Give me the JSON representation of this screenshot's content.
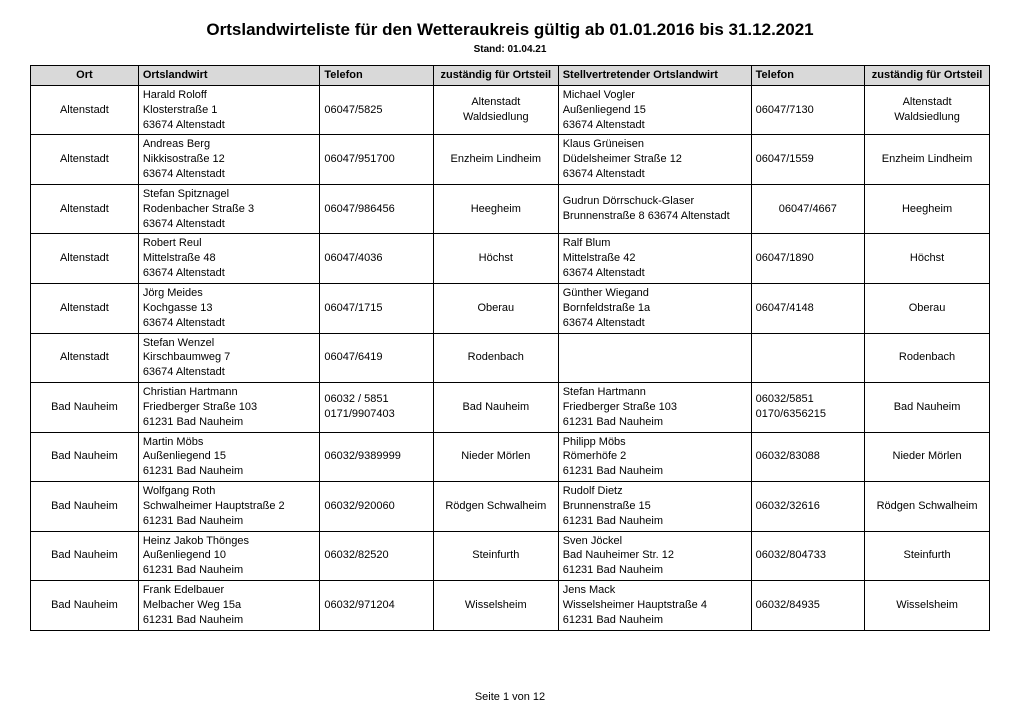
{
  "title": "Ortslandwirteliste für den Wetteraukreis gültig ab 01.01.2016 bis 31.12.2021",
  "subtitle": "Stand: 01.04.21",
  "footer": "Seite 1 von 12",
  "columns": {
    "ort": "Ort",
    "ortslandwirt": "Ortslandwirt",
    "telefon": "Telefon",
    "zustaendig": "zuständig für Ortsteil",
    "stellvertreter": "Stellvertretender Ortslandwirt",
    "telefon2": "Telefon",
    "zustaendig2": "zuständig für Ortsteil"
  },
  "rows": [
    {
      "ort": "Altenstadt",
      "olw": "Harald Roloff\nKlosterstraße 1\n63674 Altenstadt",
      "tel": "06047/5825",
      "zust": "Altenstadt Waldsiedlung",
      "stv": "Michael Vogler\nAußenliegend 15\n63674 Altenstadt",
      "tel2": "06047/7130",
      "zust2": "Altenstadt Waldsiedlung"
    },
    {
      "ort": "Altenstadt",
      "olw": "Andreas Berg\nNikkisostraße 12\n63674 Altenstadt",
      "tel": "06047/951700",
      "zust": "Enzheim Lindheim",
      "stv": "Klaus Grüneisen\nDüdelsheimer Straße 12\n63674 Altenstadt",
      "tel2": "06047/1559",
      "zust2": "Enzheim Lindheim"
    },
    {
      "ort": "Altenstadt",
      "olw": "Stefan Spitznagel\nRodenbacher Straße 3\n63674 Altenstadt",
      "tel": "06047/986456",
      "zust": "Heegheim",
      "stv": "Gudrun Dörrschuck-Glaser\nBrunnenstraße 8 63674 Altenstadt",
      "tel2": "06047/4667",
      "zust2": "Heegheim",
      "tel2_center": true
    },
    {
      "ort": "Altenstadt",
      "olw": "Robert Reul\nMittelstraße 48\n63674 Altenstadt",
      "tel": "06047/4036",
      "zust": "Höchst",
      "stv": "Ralf Blum\nMittelstraße 42\n63674 Altenstadt",
      "tel2": "06047/1890",
      "zust2": "Höchst"
    },
    {
      "ort": "Altenstadt",
      "olw": "Jörg Meides\nKochgasse 13\n63674 Altenstadt",
      "tel": "06047/1715",
      "zust": "Oberau",
      "stv": "Günther Wiegand\nBornfeldstraße 1a\n63674 Altenstadt",
      "tel2": "06047/4148",
      "zust2": "Oberau"
    },
    {
      "ort": "Altenstadt",
      "olw": "Stefan Wenzel\nKirschbaumweg 7\n63674 Altenstadt",
      "tel": "06047/6419",
      "zust": "Rodenbach",
      "stv": "",
      "tel2": "",
      "zust2": "Rodenbach"
    },
    {
      "ort": "Bad Nauheim",
      "olw": "Christian Hartmann\nFriedberger Straße 103\n61231 Bad Nauheim",
      "tel": "06032 / 5851\n0171/9907403",
      "zust": "Bad Nauheim",
      "stv": "Stefan Hartmann\nFriedberger Straße 103\n61231 Bad Nauheim",
      "tel2": "06032/5851\n0170/6356215",
      "zust2": "Bad Nauheim"
    },
    {
      "ort": "Bad Nauheim",
      "olw": "Martin Möbs\nAußenliegend 15\n61231 Bad Nauheim",
      "tel": "06032/9389999",
      "zust": "Nieder Mörlen",
      "stv": "Philipp Möbs\nRömerhöfe 2\n61231 Bad Nauheim",
      "tel2": "06032/83088",
      "zust2": "Nieder Mörlen"
    },
    {
      "ort": "Bad Nauheim",
      "olw": "Wolfgang Roth\nSchwalheimer Hauptstraße 2\n61231 Bad Nauheim",
      "tel": "06032/920060",
      "zust": "Rödgen Schwalheim",
      "stv": "Rudolf Dietz\nBrunnenstraße 15\n61231 Bad Nauheim",
      "tel2": "06032/32616",
      "zust2": "Rödgen Schwalheim"
    },
    {
      "ort": "Bad Nauheim",
      "olw": "Heinz Jakob Thönges\nAußenliegend 10\n61231 Bad Nauheim",
      "tel": "06032/82520",
      "zust": "Steinfurth",
      "stv": "Sven Jöckel\nBad Nauheimer Str. 12\n61231 Bad Nauheim",
      "tel2": "06032/804733",
      "zust2": "Steinfurth"
    },
    {
      "ort": "Bad Nauheim",
      "olw": "Frank Edelbauer\nMelbacher Weg 15a\n61231 Bad Nauheim",
      "tel": "06032/971204",
      "zust": "Wisselsheim",
      "stv": "Jens Mack\nWisselsheimer Hauptstraße 4\n61231 Bad Nauheim",
      "tel2": "06032/84935",
      "zust2": "Wisselsheim"
    }
  ]
}
